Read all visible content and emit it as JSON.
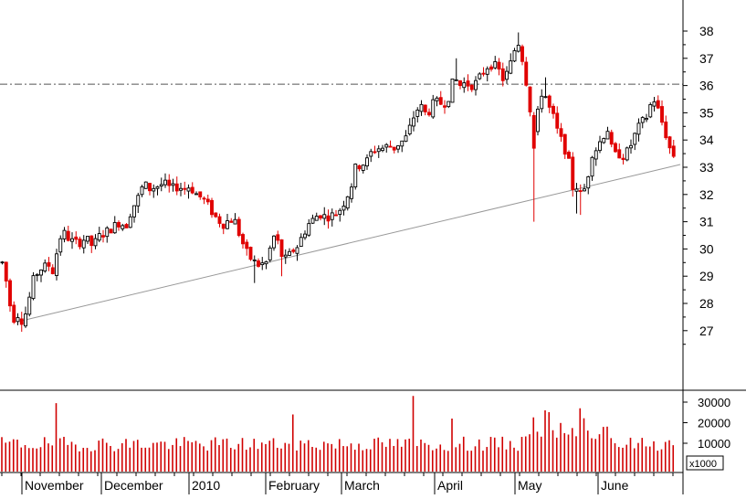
{
  "chart_data": [
    {
      "type": "candlestick",
      "y_axis": {
        "position": "right",
        "ticks": [
          "38",
          "37",
          "36",
          "35",
          "34",
          "33",
          "32",
          "31",
          "30",
          "29",
          "28",
          "27"
        ],
        "ylim": [
          26.0,
          39.0
        ]
      },
      "x_axis": {
        "labels": [
          "November",
          "December",
          "2010",
          "February",
          "March",
          "April",
          "May",
          "June"
        ]
      },
      "colors": {
        "up": "#000000",
        "down": "#e00000",
        "background": "#ffffff"
      },
      "annotations": {
        "horizontal_line": {
          "value": 36.05,
          "style": "dash-dot",
          "color": "#555555"
        },
        "trendline": {
          "from": {
            "month": "October 2009",
            "value": 27.35
          },
          "to": {
            "month": "June 2010",
            "value": 33.1
          },
          "color": "#999999"
        }
      },
      "monthly_closes": [
        {
          "month": "October 2009",
          "approx_close": 28.0
        },
        {
          "month": "November",
          "approx_close": 30.3
        },
        {
          "month": "December",
          "approx_close": 32.3
        },
        {
          "month": "January 2010",
          "approx_close": 30.6
        },
        {
          "month": "February",
          "approx_close": 30.9
        },
        {
          "month": "March",
          "approx_close": 35.2
        },
        {
          "month": "April",
          "approx_close": 37.2
        },
        {
          "month": "May",
          "approx_close": 33.8
        },
        {
          "month": "June",
          "approx_close": 33.4
        }
      ],
      "key_points": {
        "low": 27.1,
        "high": 37.95,
        "spike_low_early_may": 31.0,
        "last": 33.4
      }
    },
    {
      "type": "bar",
      "title": "",
      "y_axis": {
        "ticks": [
          "30000",
          "20000",
          "10000"
        ],
        "unit_label": "x1000",
        "ylim": [
          0,
          34000
        ]
      },
      "colors": {
        "bars": "#d00000"
      },
      "notable_volumes": {
        "typical": 11000,
        "peak_mid_april": 33000,
        "early_may": 26000
      }
    }
  ]
}
